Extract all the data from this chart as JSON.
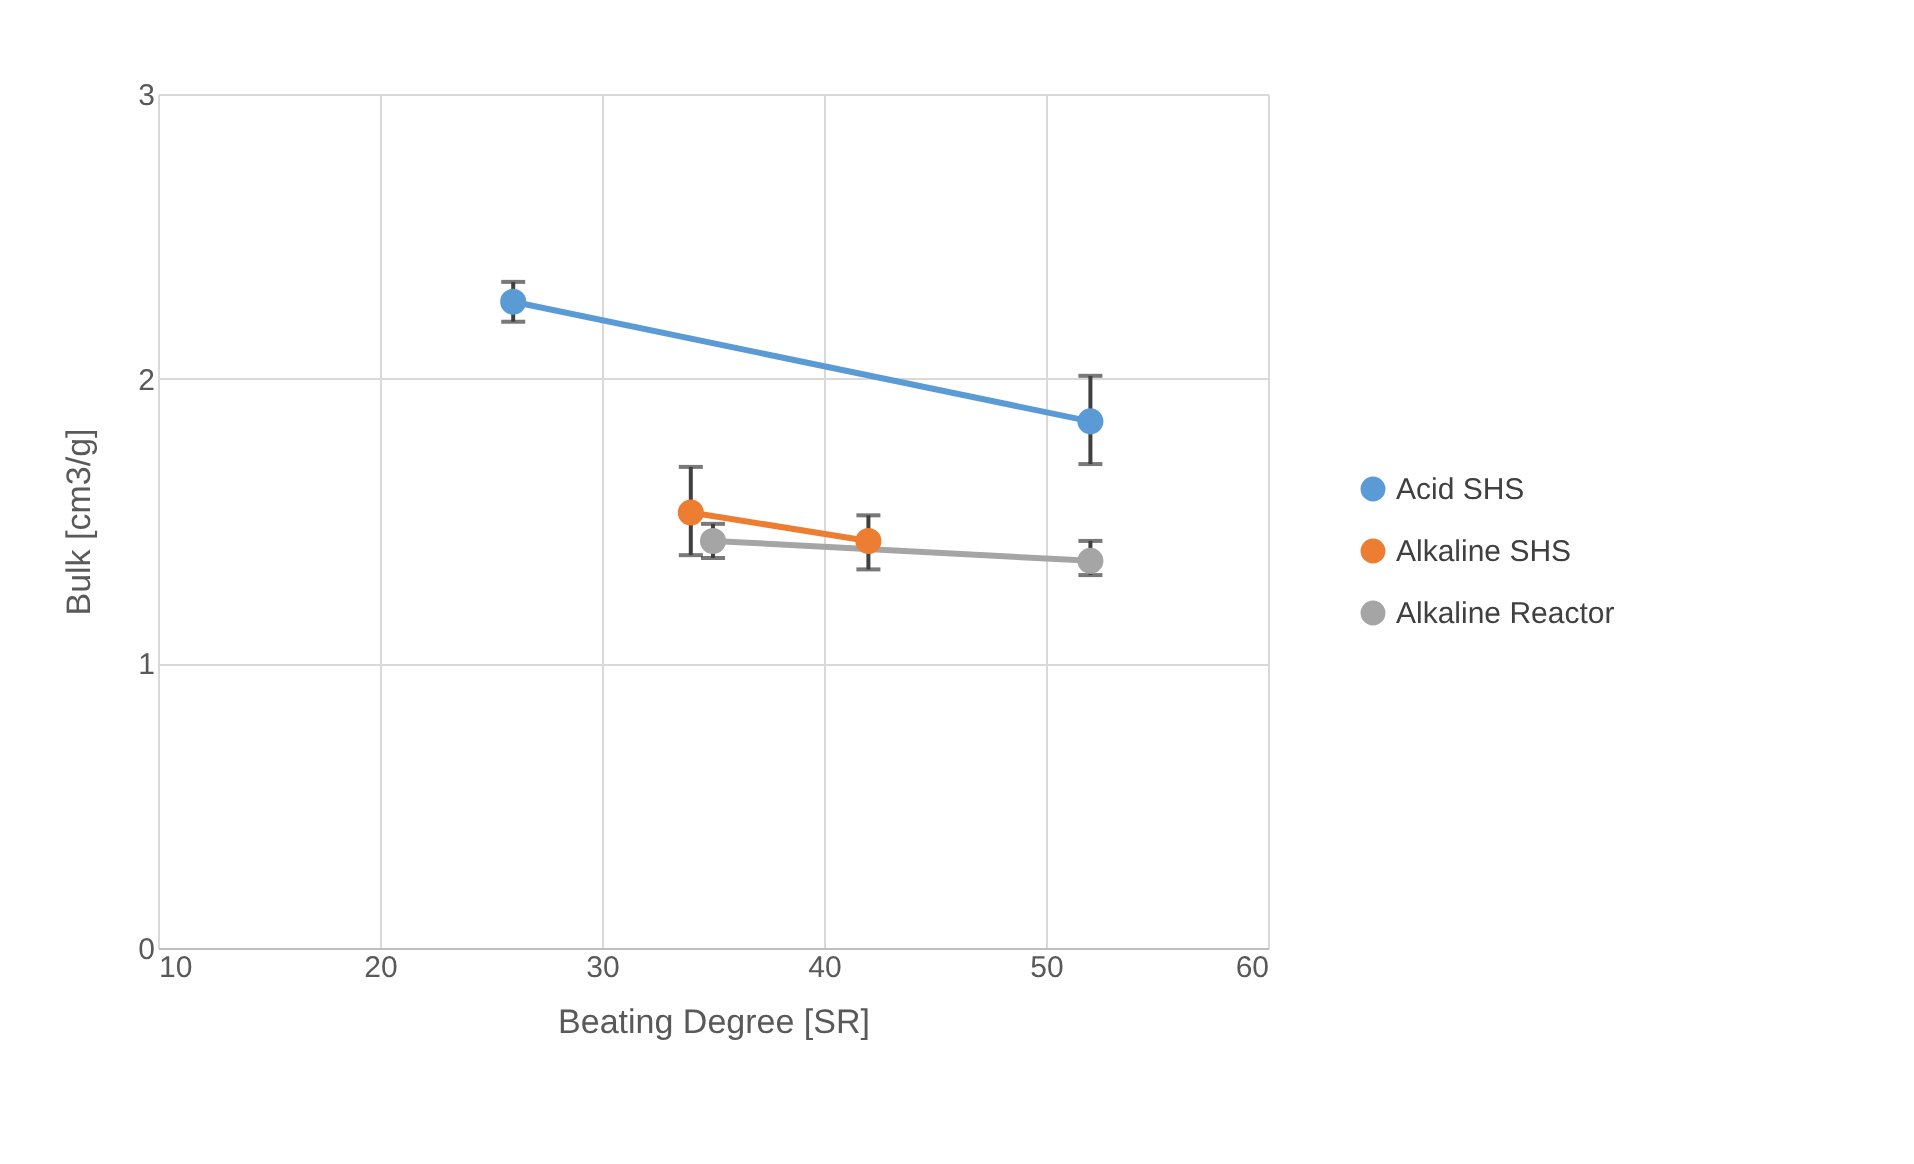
{
  "chart_data": {
    "type": "line",
    "xlabel": "Beating Degree [SR]",
    "ylabel": "Bulk [cm3/g]",
    "xlim": [
      10,
      60
    ],
    "xticks": [
      10,
      20,
      30,
      40,
      50,
      60
    ],
    "ylim": [
      0,
      3
    ],
    "yticks": [
      0,
      1,
      2,
      3
    ],
    "grid": true,
    "legend": "right",
    "marker": "circle",
    "line_style": "solid",
    "series": [
      {
        "name": "Acid SHS",
        "color": "#5b9bd5",
        "x": [
          26,
          52
        ],
        "values": [
          2.27,
          1.85
        ],
        "errors": [
          [
            2.2,
            2.34
          ],
          [
            1.7,
            2.01
          ]
        ]
      },
      {
        "name": "Alkaline SHS",
        "color": "#ed7d31",
        "x": [
          34,
          42
        ],
        "values": [
          1.53,
          1.43
        ],
        "errors": [
          [
            1.38,
            1.69
          ],
          [
            1.33,
            1.52
          ]
        ]
      },
      {
        "name": "Alkaline Reactor",
        "color": "#a5a5a5",
        "x": [
          35,
          52
        ],
        "values": [
          1.43,
          1.36
        ],
        "errors": [
          [
            1.37,
            1.49
          ],
          [
            1.31,
            1.43
          ]
        ]
      }
    ]
  }
}
